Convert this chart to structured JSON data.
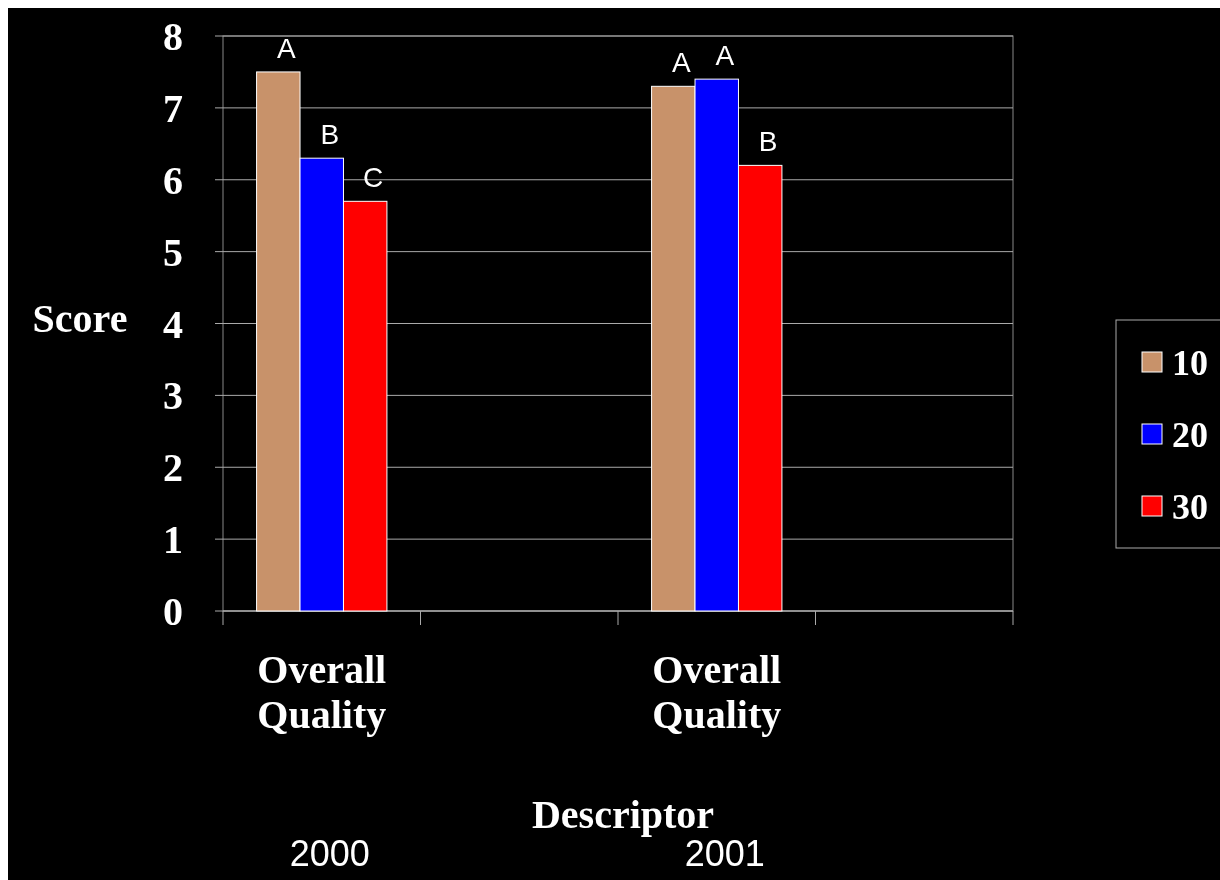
{
  "chart_data": {
    "type": "bar",
    "xlabel": "Descriptor",
    "ylabel": "Score",
    "categories": [
      "Overall Quality",
      null,
      "Overall Quality",
      null
    ],
    "series": [
      {
        "name": "10",
        "color": "#c8926a",
        "values": [
          7.5,
          null,
          7.3,
          null
        ],
        "value_labels": [
          "A",
          null,
          "A",
          null
        ]
      },
      {
        "name": "20",
        "color": "#0000ff",
        "values": [
          6.3,
          null,
          7.4,
          null
        ],
        "value_labels": [
          "B",
          null,
          "A",
          null
        ]
      },
      {
        "name": "30",
        "color": "#ff0000",
        "values": [
          5.7,
          null,
          6.2,
          null
        ],
        "value_labels": [
          "C",
          null,
          "B",
          null
        ]
      }
    ],
    "ylim": [
      0,
      8
    ],
    "yticks": [
      0,
      1,
      2,
      3,
      4,
      5,
      6,
      7,
      8
    ],
    "grid": "y",
    "legend": "right",
    "annotations": [
      "2000",
      "2001"
    ]
  }
}
